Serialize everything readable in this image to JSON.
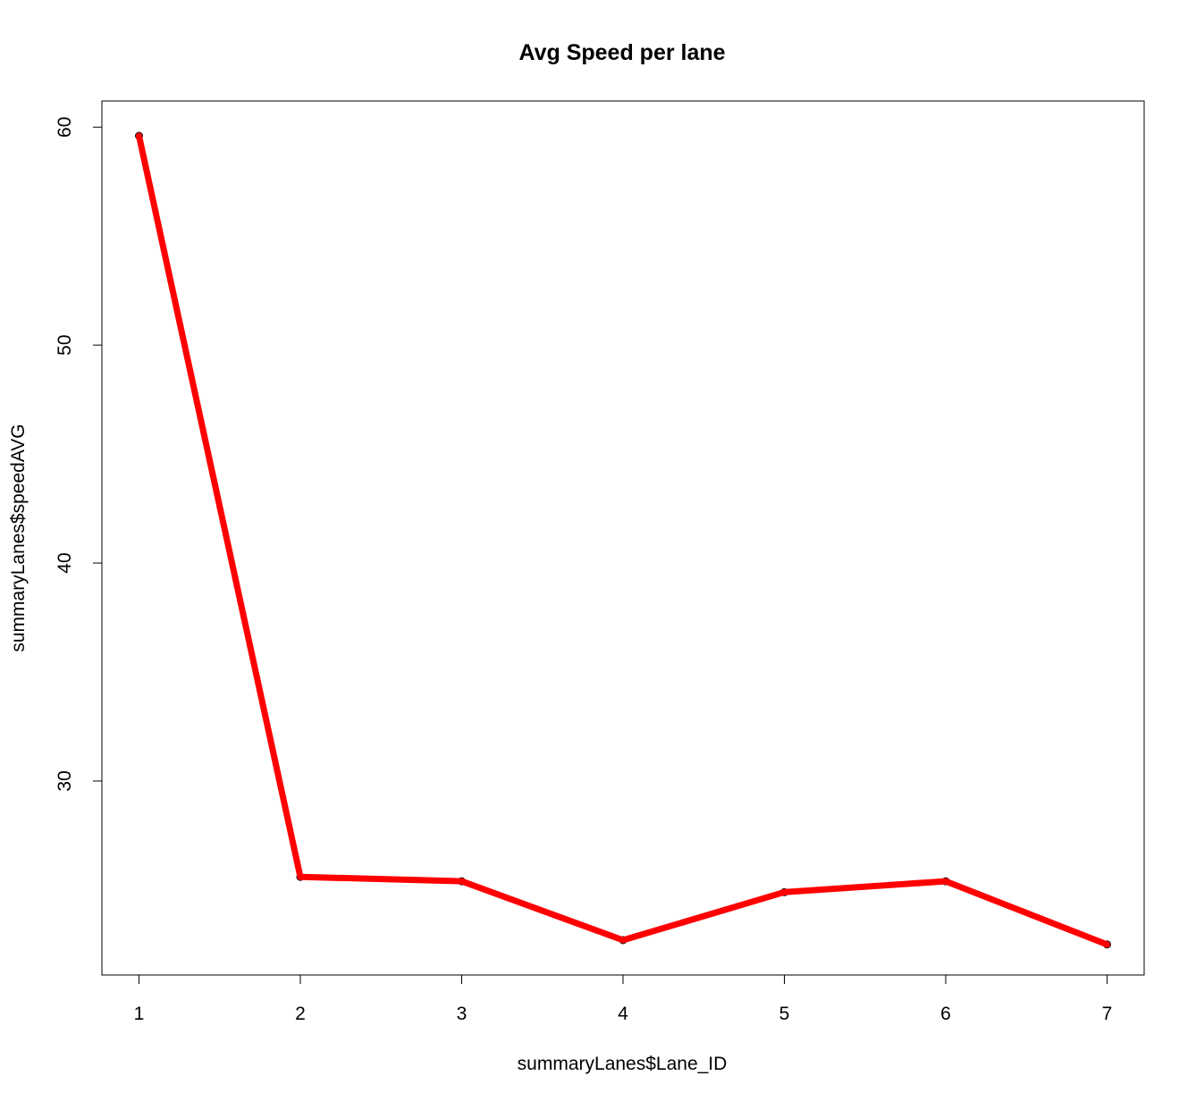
{
  "chart_data": {
    "type": "line",
    "title": "Avg Speed per lane",
    "xlabel": "summaryLanes$Lane_ID",
    "ylabel": "summaryLanes$speedAVG",
    "x": [
      1,
      2,
      3,
      4,
      5,
      6,
      7
    ],
    "series": [
      {
        "values": [
          59.6,
          25.6,
          25.4,
          22.7,
          24.9,
          25.4,
          22.5
        ],
        "color": "#ff0000"
      }
    ],
    "xlim": [
      0.77,
      7.23
    ],
    "ylim": [
      21.1,
      61.2
    ],
    "x_ticks": [
      1,
      2,
      3,
      4,
      5,
      6,
      7
    ],
    "y_ticks": [
      30,
      40,
      50,
      60
    ],
    "grid": false,
    "legend": "none",
    "point_style": "open-circle"
  }
}
